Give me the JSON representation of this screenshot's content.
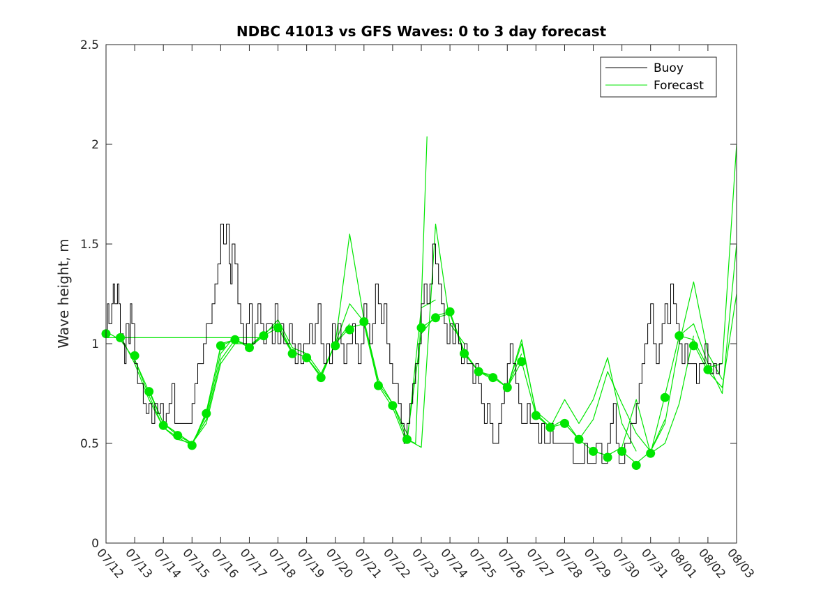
{
  "chart_data": {
    "type": "line",
    "title": "NDBC 41013 vs GFS Waves: 0 to 3 day forecast",
    "xlabel": "",
    "ylabel": "Wave height, m",
    "xlim": [
      "07/12",
      "08/03"
    ],
    "ylim": [
      0,
      2.5
    ],
    "yticks": [
      0,
      0.5,
      1,
      1.5,
      2,
      2.5
    ],
    "ytick_labels": [
      "0",
      "0.5",
      "1",
      "1.5",
      "2",
      "2.5"
    ],
    "xtick_labels": [
      "07/12",
      "07/13",
      "07/14",
      "07/15",
      "07/16",
      "07/17",
      "07/18",
      "07/19",
      "07/20",
      "07/21",
      "07/22",
      "07/23",
      "07/24",
      "07/25",
      "07/26",
      "07/27",
      "07/28",
      "07/29",
      "07/30",
      "07/31",
      "08/01",
      "08/02",
      "08/03"
    ],
    "legend": {
      "location": "top-right",
      "entries": [
        {
          "label": "Buoy",
          "color": "#000000"
        },
        {
          "label": "Forecast",
          "color": "#00e600"
        }
      ]
    },
    "grid": false,
    "colors": {
      "buoy": "#000000",
      "forecast": "#00e600",
      "marker": "#00e600"
    },
    "buoy": {
      "name": "Buoy",
      "days": [
        0,
        0.05,
        0.1,
        0.2,
        0.25,
        0.3,
        0.4,
        0.45,
        0.5,
        0.6,
        0.65,
        0.7,
        0.8,
        0.85,
        0.9,
        1.0,
        1.1,
        1.2,
        1.3,
        1.4,
        1.5,
        1.6,
        1.7,
        1.8,
        1.9,
        2.0,
        2.1,
        2.2,
        2.3,
        2.4,
        2.5,
        2.6,
        2.7,
        2.8,
        2.9,
        3.0,
        3.1,
        3.2,
        3.3,
        3.4,
        3.5,
        3.6,
        3.7,
        3.8,
        3.9,
        4.0,
        4.1,
        4.2,
        4.3,
        4.35,
        4.4,
        4.5,
        4.6,
        4.7,
        4.8,
        4.9,
        5.0,
        5.1,
        5.2,
        5.3,
        5.4,
        5.5,
        5.6,
        5.7,
        5.8,
        5.9,
        6.0,
        6.1,
        6.2,
        6.3,
        6.4,
        6.5,
        6.6,
        6.7,
        6.8,
        6.9,
        7.0,
        7.1,
        7.2,
        7.3,
        7.4,
        7.5,
        7.6,
        7.7,
        7.8,
        7.9,
        8.0,
        8.1,
        8.2,
        8.3,
        8.4,
        8.5,
        8.6,
        8.7,
        8.8,
        8.9,
        9.0,
        9.1,
        9.2,
        9.3,
        9.4,
        9.5,
        9.6,
        9.7,
        9.8,
        9.9,
        10.0,
        10.1,
        10.2,
        10.3,
        10.4,
        10.5,
        10.6,
        10.7,
        10.8,
        10.9,
        11.0,
        11.1,
        11.2,
        11.3,
        11.4,
        11.5,
        11.6,
        11.7,
        11.8,
        11.9,
        12.0,
        12.1,
        12.2,
        12.3,
        12.4,
        12.5,
        12.6,
        12.7,
        12.8,
        12.9,
        13.0,
        13.1,
        13.2,
        13.3,
        13.4,
        13.5,
        13.6,
        13.7,
        13.8,
        13.9,
        14.0,
        14.1,
        14.2,
        14.3,
        14.4,
        14.5,
        14.6,
        14.7,
        14.8,
        14.9,
        15.0,
        15.1,
        15.2,
        15.3,
        15.4,
        15.5,
        15.6,
        15.7,
        15.8,
        15.9,
        16.0,
        16.1,
        16.2,
        16.3,
        16.4,
        16.5,
        16.6,
        16.7,
        16.8,
        16.9,
        17.0,
        17.1,
        17.2,
        17.3,
        17.4,
        17.5,
        17.6,
        17.7,
        17.8,
        17.9,
        18.0,
        18.1,
        18.2,
        18.3,
        18.4,
        18.5,
        18.6,
        18.7,
        18.8,
        18.9,
        19.0,
        19.1,
        19.2,
        19.3,
        19.4,
        19.5,
        19.6,
        19.7,
        19.8,
        19.9,
        20.0,
        20.1,
        20.2,
        20.3,
        20.4,
        20.5,
        20.6,
        20.7,
        20.8,
        20.9,
        21.0,
        21.1,
        21.2,
        21.3,
        21.4,
        21.5
      ],
      "values": [
        1.05,
        1.2,
        1.1,
        1.2,
        1.3,
        1.2,
        1.3,
        1.2,
        1.05,
        1.0,
        0.9,
        1.1,
        1.0,
        1.2,
        1.1,
        0.9,
        0.8,
        0.8,
        0.7,
        0.65,
        0.7,
        0.6,
        0.7,
        0.65,
        0.7,
        0.6,
        0.65,
        0.7,
        0.8,
        0.6,
        0.6,
        0.6,
        0.6,
        0.6,
        0.6,
        0.7,
        0.8,
        0.9,
        0.9,
        1.0,
        1.1,
        1.1,
        1.2,
        1.3,
        1.4,
        1.6,
        1.5,
        1.6,
        1.4,
        1.3,
        1.5,
        1.4,
        1.2,
        1.1,
        1.0,
        1.1,
        1.2,
        1.0,
        1.1,
        1.2,
        1.1,
        1.0,
        1.1,
        1.1,
        1.0,
        1.2,
        1.0,
        1.1,
        1.0,
        1.0,
        1.1,
        1.0,
        0.9,
        1.0,
        0.9,
        1.0,
        1.0,
        1.1,
        1.0,
        1.1,
        1.2,
        1.0,
        0.9,
        1.0,
        0.9,
        1.1,
        1.0,
        1.1,
        1.0,
        0.9,
        1.0,
        1.0,
        1.1,
        1.0,
        0.9,
        1.0,
        1.2,
        1.1,
        1.0,
        1.1,
        1.3,
        1.2,
        1.1,
        1.2,
        1.0,
        0.9,
        0.8,
        0.8,
        0.7,
        0.6,
        0.5,
        0.6,
        0.7,
        0.8,
        0.9,
        1.0,
        1.2,
        1.3,
        1.2,
        1.3,
        1.5,
        1.4,
        1.3,
        1.2,
        1.1,
        1.0,
        1.1,
        1.0,
        1.1,
        1.0,
        0.9,
        1.0,
        0.9,
        0.9,
        0.8,
        0.9,
        0.8,
        0.7,
        0.6,
        0.7,
        0.6,
        0.5,
        0.5,
        0.6,
        0.7,
        0.8,
        0.9,
        1.0,
        0.9,
        0.8,
        0.7,
        0.6,
        0.6,
        0.7,
        0.6,
        0.6,
        0.6,
        0.5,
        0.6,
        0.5,
        0.5,
        0.6,
        0.5,
        0.5,
        0.5,
        0.5,
        0.5,
        0.5,
        0.5,
        0.4,
        0.4,
        0.4,
        0.4,
        0.5,
        0.4,
        0.4,
        0.4,
        0.5,
        0.5,
        0.4,
        0.4,
        0.5,
        0.6,
        0.7,
        0.5,
        0.4,
        0.4,
        0.5,
        0.5,
        0.6,
        0.6,
        0.7,
        0.8,
        0.9,
        1.0,
        1.1,
        1.2,
        1.0,
        0.9,
        1.0,
        1.1,
        1.2,
        1.1,
        1.3,
        1.2,
        1.1,
        1.0,
        0.9,
        1.0,
        0.9,
        0.9,
        0.9,
        0.8,
        0.9,
        0.9,
        1.0,
        0.9,
        0.85,
        0.9,
        0.85,
        0.9,
        0.9
      ]
    },
    "forecast_runs": [
      {
        "days": [
          0,
          0.5,
          1,
          1.5,
          2,
          2.5,
          3,
          3.5
        ],
        "values": [
          1.06,
          1.02,
          0.92,
          0.76,
          0.6,
          0.54,
          0.5,
          0.62
        ]
      },
      {
        "days": [
          0.5,
          1,
          1.5,
          2,
          2.5,
          3,
          3.5,
          4
        ],
        "values": [
          1.04,
          0.9,
          0.72,
          0.58,
          0.53,
          0.49,
          0.66,
          0.98
        ]
      },
      {
        "days": [
          1,
          1.5,
          2,
          2.5,
          3,
          3.5,
          4,
          4.5
        ],
        "values": [
          0.92,
          0.74,
          0.58,
          0.52,
          0.5,
          0.64,
          0.95,
          1.04
        ]
      },
      {
        "days": [
          1.5,
          2,
          2.5,
          3,
          3.5,
          4,
          4.5,
          5
        ],
        "values": [
          0.77,
          0.6,
          0.55,
          0.5,
          0.6,
          0.9,
          1.0,
          1.0
        ]
      },
      {
        "days": [
          2,
          2.5,
          3,
          3.5,
          4,
          4.5,
          5,
          5.5
        ],
        "values": [
          0.6,
          0.54,
          0.5,
          0.62,
          0.92,
          1.02,
          0.98,
          1.05
        ]
      },
      {
        "days": [
          0,
          1,
          2,
          3,
          4,
          5,
          5.5
        ],
        "values": [
          1.03,
          1.03,
          1.03,
          1.03,
          1.03,
          1.03,
          1.03
        ]
      },
      {
        "days": [
          3,
          3.5,
          4,
          4.5,
          5,
          5.5,
          6,
          6.5
        ],
        "values": [
          0.49,
          0.65,
          0.99,
          1.02,
          0.98,
          1.04,
          1.08,
          0.95
        ]
      },
      {
        "days": [
          4,
          4.5,
          5,
          5.5,
          6,
          6.5,
          7,
          7.5
        ],
        "values": [
          1.0,
          1.02,
          0.99,
          1.05,
          1.1,
          0.96,
          0.93,
          0.84
        ]
      },
      {
        "days": [
          5,
          5.5,
          6,
          6.5,
          7,
          7.5,
          8,
          8.5
        ],
        "values": [
          0.98,
          1.04,
          1.12,
          0.98,
          0.95,
          0.85,
          1.0,
          1.1
        ]
      },
      {
        "days": [
          6,
          6.5,
          7,
          7.5,
          8,
          8.5,
          9,
          9.5
        ],
        "values": [
          1.08,
          0.96,
          0.93,
          0.83,
          1.0,
          1.2,
          1.11,
          0.8
        ]
      },
      {
        "days": [
          7,
          7.5,
          8,
          8.5,
          9,
          9.5,
          10,
          10.5
        ],
        "values": [
          0.93,
          0.84,
          1.0,
          1.55,
          1.12,
          0.82,
          0.7,
          0.55
        ]
      },
      {
        "days": [
          8,
          8.5,
          9,
          9.5,
          10,
          10.5,
          11,
          11.5
        ],
        "values": [
          1.0,
          1.08,
          1.1,
          0.79,
          0.68,
          0.5,
          1.18,
          1.22
        ]
      },
      {
        "days": [
          9,
          9.5,
          10,
          10.5,
          11,
          11.5,
          12,
          12.5
        ],
        "values": [
          1.1,
          0.8,
          0.7,
          0.52,
          0.48,
          1.6,
          1.1,
          1.0
        ]
      },
      {
        "days": [
          10,
          10.5,
          10.8,
          11,
          11.2
        ],
        "values": [
          0.7,
          0.52,
          0.5,
          1.2,
          2.04
        ]
      },
      {
        "days": [
          10.5,
          11,
          11.5,
          12,
          12.5,
          13,
          13.5
        ],
        "values": [
          0.52,
          1.05,
          1.14,
          1.16,
          0.96,
          0.86,
          0.82
        ]
      },
      {
        "days": [
          11,
          11.5,
          12,
          12.5,
          13,
          13.5,
          14,
          14.5
        ],
        "values": [
          1.08,
          1.13,
          1.15,
          0.95,
          0.86,
          0.83,
          0.78,
          0.95
        ]
      },
      {
        "days": [
          12,
          12.5,
          13,
          13.5,
          14,
          14.5,
          15,
          15.5
        ],
        "values": [
          1.16,
          0.95,
          0.86,
          0.84,
          0.78,
          1.0,
          0.66,
          0.6
        ]
      },
      {
        "days": [
          13,
          13.5,
          14,
          14.5,
          15,
          15.5,
          16,
          16.5
        ],
        "values": [
          0.86,
          0.84,
          0.78,
          1.02,
          0.65,
          0.58,
          0.62,
          0.52
        ]
      },
      {
        "days": [
          14,
          14.5,
          15,
          15.5,
          16,
          16.5,
          17,
          17.5
        ],
        "values": [
          0.78,
          0.91,
          0.64,
          0.58,
          0.6,
          0.52,
          0.46,
          0.44
        ]
      },
      {
        "days": [
          15,
          15.5,
          16,
          16.5,
          17,
          17.5,
          18,
          18.5
        ],
        "values": [
          0.64,
          0.58,
          0.72,
          0.6,
          0.72,
          0.93,
          0.6,
          0.46
        ]
      },
      {
        "days": [
          16,
          16.5,
          17,
          17.5,
          18,
          18.5,
          19,
          19.5
        ],
        "values": [
          0.6,
          0.52,
          0.62,
          0.86,
          0.7,
          0.55,
          0.46,
          0.62
        ]
      },
      {
        "days": [
          17,
          17.5,
          18,
          18.5,
          19,
          19.5,
          20,
          20.5
        ],
        "values": [
          0.46,
          0.44,
          0.48,
          0.72,
          0.45,
          0.5,
          0.7,
          1.04
        ]
      },
      {
        "days": [
          18,
          18.5,
          19,
          19.5,
          20,
          20.5,
          21,
          21.5
        ],
        "values": [
          0.46,
          0.4,
          0.46,
          0.6,
          1.0,
          1.31,
          0.95,
          0.82
        ]
      },
      {
        "days": [
          19,
          19.5,
          20,
          20.5,
          21,
          21.5,
          22
        ],
        "values": [
          0.45,
          0.74,
          1.04,
          1.1,
          0.9,
          0.75,
          1.5
        ]
      },
      {
        "days": [
          20,
          20.5,
          21,
          21.5,
          22
        ],
        "values": [
          1.04,
          1.02,
          0.88,
          0.9,
          2.0
        ]
      },
      {
        "days": [
          20.5,
          21,
          21.5,
          22
        ],
        "values": [
          1.0,
          0.86,
          0.78,
          1.25
        ]
      }
    ],
    "forecast_markers": {
      "days": [
        0,
        0.5,
        1,
        1.5,
        2,
        2.5,
        3,
        3.5,
        4,
        4.5,
        5,
        5.5,
        6,
        6.5,
        7,
        7.5,
        8,
        8.5,
        9,
        9.5,
        10,
        10.5,
        11,
        11.5,
        12,
        12.5,
        13,
        13.5,
        14,
        14.5,
        15,
        15.5,
        16,
        16.5,
        17,
        17.5,
        18,
        18.5,
        19,
        19.5,
        20,
        20.5,
        21
      ],
      "values": [
        1.05,
        1.03,
        0.94,
        0.76,
        0.59,
        0.54,
        0.49,
        0.65,
        0.99,
        1.02,
        0.98,
        1.04,
        1.08,
        0.95,
        0.93,
        0.83,
        0.99,
        1.07,
        1.11,
        0.79,
        0.69,
        0.52,
        1.08,
        1.13,
        1.16,
        0.95,
        0.86,
        0.83,
        0.78,
        0.91,
        0.64,
        0.58,
        0.6,
        0.52,
        0.46,
        0.43,
        0.46,
        0.39,
        0.45,
        0.73,
        1.04,
        0.99,
        0.87
      ]
    }
  }
}
